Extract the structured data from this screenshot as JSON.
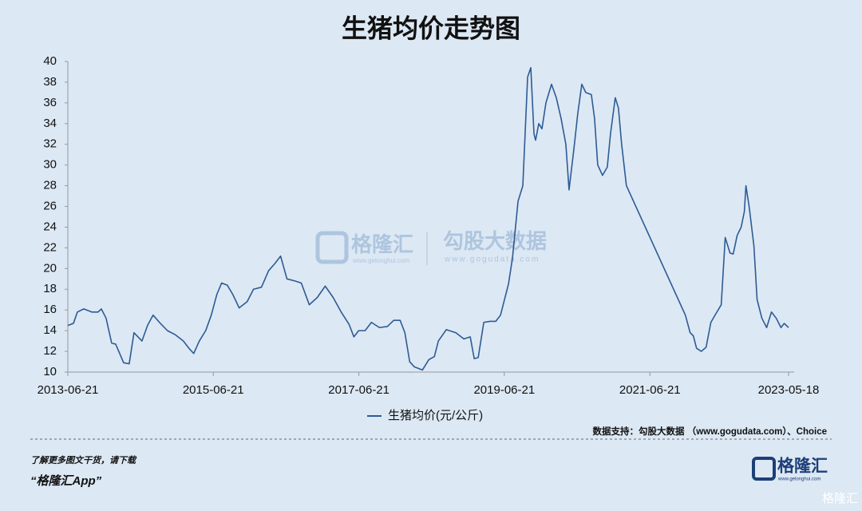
{
  "chart_data": {
    "type": "line",
    "title": "生猪均价走势图",
    "x": [
      "2013-06-21",
      "2013-07-19",
      "2013-08-08",
      "2013-09-09",
      "2013-10-19",
      "2013-11-20",
      "2013-12-06",
      "2013-12-30",
      "2014-01-27",
      "2014-02-16",
      "2014-03-28",
      "2014-04-25",
      "2014-05-19",
      "2014-06-28",
      "2014-07-26",
      "2014-08-23",
      "2014-09-24",
      "2014-11-03",
      "2014-12-13",
      "2015-01-22",
      "2015-02-23",
      "2015-03-15",
      "2015-04-12",
      "2015-05-14",
      "2015-06-11",
      "2015-07-09",
      "2015-08-02",
      "2015-08-30",
      "2015-09-27",
      "2015-10-29",
      "2015-12-08",
      "2016-01-09",
      "2016-02-18",
      "2016-03-25",
      "2016-04-26",
      "2016-05-24",
      "2016-06-25",
      "2016-08-04",
      "2016-09-05",
      "2016-10-15",
      "2016-11-24",
      "2017-01-03",
      "2017-02-12",
      "2017-03-24",
      "2017-05-03",
      "2017-05-27",
      "2017-06-20",
      "2017-07-22",
      "2017-08-23",
      "2017-10-02",
      "2017-11-11",
      "2017-12-13",
      "2018-01-14",
      "2018-02-07",
      "2018-03-03",
      "2018-03-27",
      "2018-05-06",
      "2018-06-07",
      "2018-07-05",
      "2018-07-25",
      "2018-09-03",
      "2018-10-21",
      "2018-11-30",
      "2019-01-01",
      "2019-01-21",
      "2019-02-10",
      "2019-03-10",
      "2019-04-11",
      "2019-05-09",
      "2019-06-02",
      "2019-06-22",
      "2019-07-12",
      "2019-08-01",
      "2019-08-29",
      "2019-09-22",
      "2019-10-16",
      "2019-11-01",
      "2019-11-17",
      "2019-11-25",
      "2019-12-11",
      "2019-12-27",
      "2020-01-16",
      "2020-02-13",
      "2020-03-08",
      "2020-04-01",
      "2020-04-25",
      "2020-05-11",
      "2020-06-04",
      "2020-06-24",
      "2020-07-14",
      "2020-08-03",
      "2020-08-31",
      "2020-09-16",
      "2020-10-02",
      "2020-10-26",
      "2020-11-19",
      "2020-12-05",
      "2020-12-29",
      "2021-01-14",
      "2021-01-30",
      "2021-02-23",
      "2021-12-16",
      "2022-01-09",
      "2022-01-25",
      "2022-02-10",
      "2022-03-06",
      "2022-03-30",
      "2022-04-23",
      "2022-05-17",
      "2022-06-14",
      "2022-07-04",
      "2022-07-28",
      "2022-08-13",
      "2022-09-02",
      "2022-09-22",
      "2022-10-08",
      "2022-10-16",
      "2022-11-01",
      "2022-11-25",
      "2022-12-11",
      "2023-01-04",
      "2023-01-28",
      "2023-02-21",
      "2023-03-17",
      "2023-04-10",
      "2023-04-26",
      "2023-05-18"
    ],
    "series": [
      {
        "name": "生猪均价(元/公斤)",
        "color": "#2e5b94",
        "values": [
          14.5,
          14.7,
          15.8,
          16.1,
          15.8,
          15.8,
          16.1,
          15.2,
          12.8,
          12.7,
          10.9,
          10.8,
          13.8,
          13.0,
          14.5,
          15.5,
          14.8,
          14.0,
          13.6,
          13.0,
          12.2,
          11.8,
          13.0,
          14.0,
          15.5,
          17.5,
          18.6,
          18.4,
          17.5,
          16.2,
          16.8,
          18.0,
          18.2,
          19.8,
          20.5,
          21.2,
          19.0,
          18.8,
          18.6,
          16.5,
          17.2,
          18.3,
          17.2,
          15.8,
          14.6,
          13.4,
          14.0,
          14.0,
          14.8,
          14.3,
          14.4,
          15.0,
          15.0,
          13.8,
          11.0,
          10.5,
          10.2,
          11.2,
          11.5,
          13.0,
          14.1,
          13.8,
          13.2,
          13.4,
          11.3,
          11.4,
          14.8,
          14.9,
          14.9,
          15.5,
          17.0,
          18.5,
          21.0,
          26.5,
          28.0,
          38.5,
          39.4,
          33.0,
          32.4,
          34.0,
          33.5,
          36.0,
          37.8,
          36.5,
          34.5,
          32.0,
          27.6,
          31.5,
          35.0,
          37.8,
          37.0,
          36.8,
          34.5,
          30.0,
          29.0,
          29.8,
          33.0,
          36.5,
          35.5,
          32.0,
          28.0,
          15.5,
          13.8,
          13.5,
          12.3,
          12.0,
          12.4,
          14.8,
          15.6,
          16.5,
          23.0,
          21.5,
          21.4,
          23.2,
          24.0,
          25.5,
          28.0,
          26.0,
          22.2,
          17.0,
          15.2,
          14.3,
          15.8,
          15.2,
          14.3,
          14.7,
          14.3
        ]
      }
    ],
    "xlim": [
      "2013-06-21",
      "2023-05-18"
    ],
    "xticks": [
      "2013-06-21",
      "2015-06-21",
      "2017-06-21",
      "2019-06-21",
      "2021-06-21",
      "2023-05-18"
    ],
    "ylim": [
      10,
      40
    ],
    "yticks": [
      10,
      12,
      14,
      16,
      18,
      20,
      22,
      24,
      26,
      28,
      30,
      32,
      34,
      36,
      38,
      40
    ],
    "grid": false,
    "legend": "bottom"
  },
  "source": "数据支持：勾股大数据 （www.gogudata.com）、Choice",
  "watermark": {
    "brand": "格隆汇",
    "brand_sub": "www.gelonghui.com",
    "partner": "勾股大数据",
    "partner_sub": "www.gogudata.com"
  },
  "footer": {
    "line1": "了解更多图文干货，请下载",
    "line2": "“格隆汇App”",
    "logo": "格隆汇",
    "logo_sub": "www.gelonghui.com",
    "corner": "格隆汇"
  }
}
